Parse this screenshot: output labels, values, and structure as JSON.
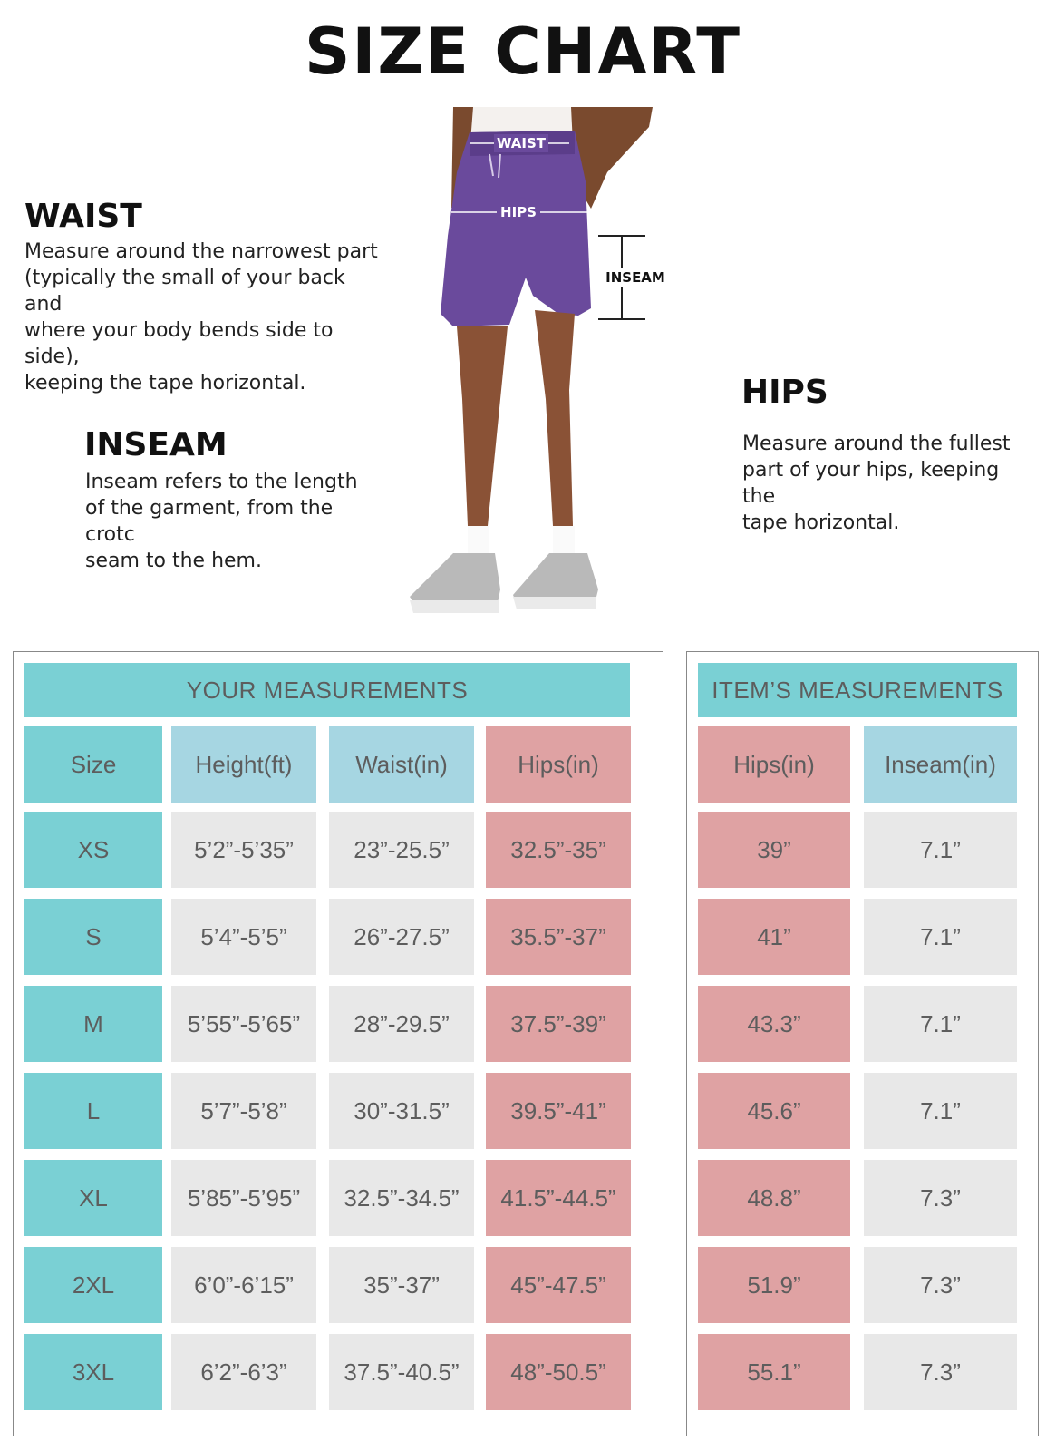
{
  "title": "SIZE  CHART",
  "sections": {
    "waist": {
      "heading": "WAIST",
      "body": "Measure around the narrowest part\n(typically the small of your back and\nwhere your body bends side to side),\nkeeping the tape horizontal."
    },
    "inseam": {
      "heading": "INSEAM",
      "body": "Inseam refers to the length\nof the garment, from the crotc\nseam to the hem."
    },
    "hips": {
      "heading": "HIPS",
      "body": "Measure around the fullest\npart of your hips, keeping the\ntape horizontal."
    }
  },
  "figure": {
    "waist_label": "WAIST",
    "hips_label": "HIPS",
    "inseam_label": "INSEAM"
  },
  "your_measurements": {
    "banner": "YOUR MEASUREMENTS",
    "headers": [
      "Size",
      "Height(ft)",
      "Waist(in)",
      "Hips(in)"
    ],
    "rows": [
      [
        "XS",
        "5’2”-5’35”",
        "23”-25.5”",
        "32.5”-35”"
      ],
      [
        "S",
        "5’4”-5’5”",
        "26”-27.5”",
        "35.5”-37”"
      ],
      [
        "M",
        "5’55”-5’65”",
        "28”-29.5”",
        "37.5”-39”"
      ],
      [
        "L",
        "5’7”-5’8”",
        "30”-31.5”",
        "39.5”-41”"
      ],
      [
        "XL",
        "5’85”-5’95”",
        "32.5”-34.5”",
        "41.5”-44.5”"
      ],
      [
        "2XL",
        "6’0”-6’15”",
        "35”-37”",
        "45”-47.5”"
      ],
      [
        "3XL",
        "6’2”-6’3”",
        "37.5”-40.5”",
        "48”-50.5”"
      ]
    ]
  },
  "items_measurements": {
    "banner": "ITEM’S MEASUREMENTS",
    "headers": [
      "Hips(in)",
      "Inseam(in)"
    ],
    "rows": [
      [
        "39”",
        "7.1”"
      ],
      [
        "41”",
        "7.1”"
      ],
      [
        "43.3”",
        "7.1”"
      ],
      [
        "45.6”",
        "7.1”"
      ],
      [
        "48.8”",
        "7.3”"
      ],
      [
        "51.9”",
        "7.3”"
      ],
      [
        "55.1”",
        "7.3”"
      ]
    ]
  },
  "colors": {
    "teal": "#7ad0d4",
    "light_blue": "#a6d6e2",
    "pink": "#dfa2a3",
    "grey": "#e8e8e8",
    "shorts_purple": "#6a4a9c"
  }
}
